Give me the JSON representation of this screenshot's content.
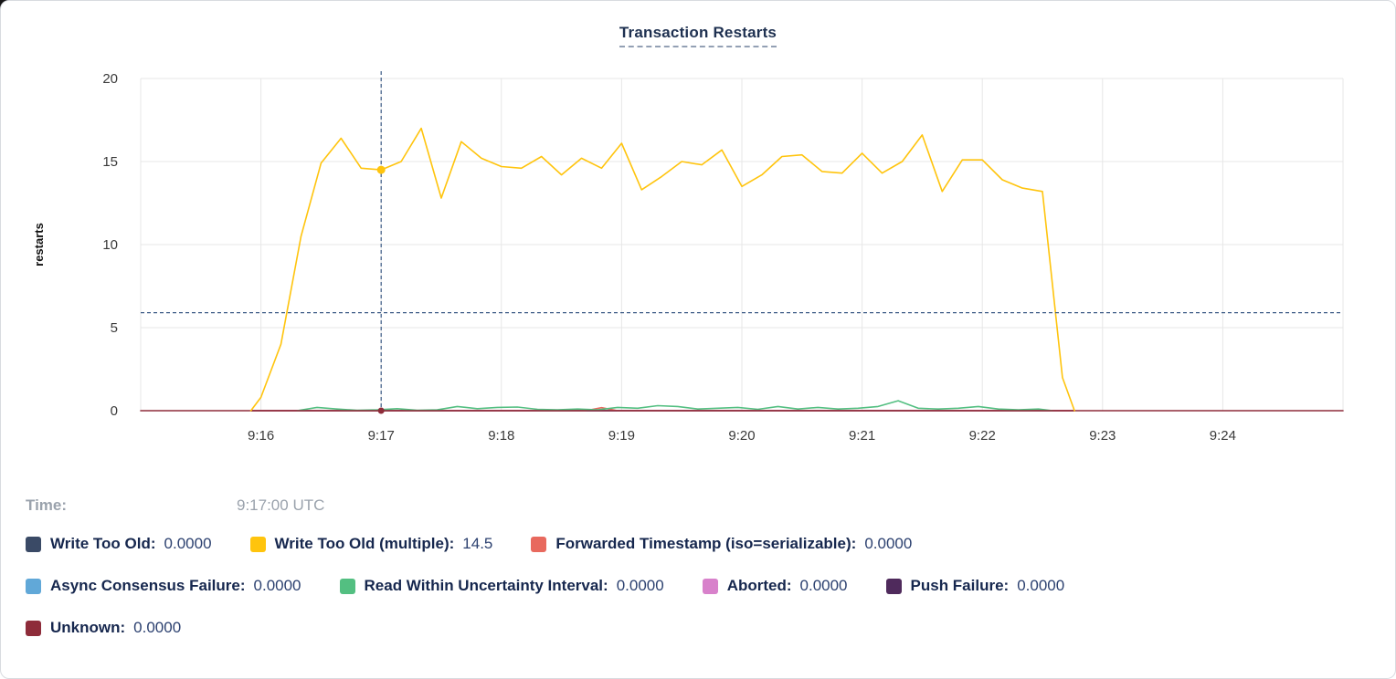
{
  "title": "Transaction Restarts",
  "time_row": {
    "label": "Time:",
    "value": "9:17:00 UTC"
  },
  "legend": {
    "rows": [
      [
        {
          "label": "Write Too Old:",
          "value": "0.0000",
          "color": "#3a4a66"
        },
        {
          "label": "Write Too Old (multiple):",
          "value": "14.5",
          "color": "#ffc40d"
        },
        {
          "label": "Forwarded Timestamp (iso=serializable):",
          "value": "0.0000",
          "color": "#e8695e"
        }
      ],
      [
        {
          "label": "Async Consensus Failure:",
          "value": "0.0000",
          "color": "#61a8d8"
        },
        {
          "label": "Read Within Uncertainty Interval:",
          "value": "0.0000",
          "color": "#53bf81"
        },
        {
          "label": "Aborted:",
          "value": "0.0000",
          "color": "#d881cb"
        },
        {
          "label": "Push Failure:",
          "value": "0.0000",
          "color": "#4f2a5c"
        }
      ],
      [
        {
          "label": "Unknown:",
          "value": "0.0000",
          "color": "#8e2c3a"
        }
      ]
    ]
  },
  "chart_data": {
    "type": "line",
    "title": "Transaction Restarts",
    "ylabel": "restarts",
    "ylim": [
      0,
      20
    ],
    "y_ticks": [
      0,
      5,
      10,
      15,
      20
    ],
    "x_base_time": "9:15:00",
    "xlim_seconds": [
      0,
      600
    ],
    "x_gridlines_seconds": [
      0,
      60,
      120,
      180,
      240,
      300,
      360,
      420,
      480,
      540,
      600
    ],
    "x_ticks": [
      {
        "t": 60,
        "label": "9:16"
      },
      {
        "t": 120,
        "label": "9:17"
      },
      {
        "t": 180,
        "label": "9:18"
      },
      {
        "t": 240,
        "label": "9:19"
      },
      {
        "t": 300,
        "label": "9:20"
      },
      {
        "t": 360,
        "label": "9:21"
      },
      {
        "t": 420,
        "label": "9:22"
      },
      {
        "t": 480,
        "label": "9:23"
      },
      {
        "t": 540,
        "label": "9:24"
      }
    ],
    "grid": true,
    "series": [
      {
        "name": "Write Too Old",
        "color": "#3a4a66",
        "points": [
          [
            55,
            0
          ],
          [
            466,
            0
          ]
        ]
      },
      {
        "name": "Async Consensus Failure",
        "color": "#61a8d8",
        "points": [
          [
            55,
            0
          ],
          [
            466,
            0
          ]
        ]
      },
      {
        "name": "Aborted",
        "color": "#d881cb",
        "points": [
          [
            55,
            0
          ],
          [
            466,
            0
          ]
        ]
      },
      {
        "name": "Push Failure",
        "color": "#4f2a5c",
        "points": [
          [
            55,
            0
          ],
          [
            466,
            0
          ]
        ]
      },
      {
        "name": "Forwarded Timestamp (iso=serializable)",
        "color": "#e8695e",
        "points": [
          [
            55,
            0
          ],
          [
            222,
            0
          ],
          [
            230,
            0.18
          ],
          [
            238,
            0
          ],
          [
            466,
            0
          ]
        ]
      },
      {
        "name": "Read Within Uncertainty Interval",
        "color": "#53bf81",
        "points": [
          [
            78,
            0
          ],
          [
            88,
            0.2
          ],
          [
            98,
            0.1
          ],
          [
            108,
            0.02
          ],
          [
            118,
            0.05
          ],
          [
            128,
            0.12
          ],
          [
            138,
            0.02
          ],
          [
            148,
            0.05
          ],
          [
            158,
            0.25
          ],
          [
            168,
            0.12
          ],
          [
            178,
            0.2
          ],
          [
            188,
            0.22
          ],
          [
            198,
            0.08
          ],
          [
            208,
            0.05
          ],
          [
            218,
            0.1
          ],
          [
            228,
            0.05
          ],
          [
            238,
            0.2
          ],
          [
            248,
            0.15
          ],
          [
            258,
            0.3
          ],
          [
            268,
            0.25
          ],
          [
            278,
            0.1
          ],
          [
            288,
            0.15
          ],
          [
            298,
            0.2
          ],
          [
            308,
            0.08
          ],
          [
            318,
            0.25
          ],
          [
            328,
            0.1
          ],
          [
            338,
            0.2
          ],
          [
            348,
            0.1
          ],
          [
            358,
            0.15
          ],
          [
            368,
            0.25
          ],
          [
            378,
            0.6
          ],
          [
            388,
            0.15
          ],
          [
            398,
            0.1
          ],
          [
            408,
            0.15
          ],
          [
            418,
            0.25
          ],
          [
            428,
            0.1
          ],
          [
            438,
            0.05
          ],
          [
            448,
            0.1
          ],
          [
            455,
            0
          ]
        ]
      },
      {
        "name": "Unknown",
        "color": "#8e2c3a",
        "points": [
          [
            0,
            0
          ],
          [
            600,
            0
          ]
        ]
      },
      {
        "name": "Write Too Old (multiple)",
        "color": "#ffc40d",
        "points": [
          [
            55,
            0
          ],
          [
            60,
            0.8
          ],
          [
            70,
            4.0
          ],
          [
            80,
            10.5
          ],
          [
            90,
            14.9
          ],
          [
            100,
            16.4
          ],
          [
            110,
            14.6
          ],
          [
            120,
            14.5
          ],
          [
            130,
            15.0
          ],
          [
            140,
            17.0
          ],
          [
            150,
            12.8
          ],
          [
            160,
            16.2
          ],
          [
            170,
            15.2
          ],
          [
            180,
            14.7
          ],
          [
            190,
            14.6
          ],
          [
            200,
            15.3
          ],
          [
            210,
            14.2
          ],
          [
            220,
            15.2
          ],
          [
            230,
            14.6
          ],
          [
            240,
            16.1
          ],
          [
            250,
            13.3
          ],
          [
            260,
            14.1
          ],
          [
            270,
            15.0
          ],
          [
            280,
            14.8
          ],
          [
            290,
            15.7
          ],
          [
            300,
            13.5
          ],
          [
            310,
            14.2
          ],
          [
            320,
            15.3
          ],
          [
            330,
            15.4
          ],
          [
            340,
            14.4
          ],
          [
            350,
            14.3
          ],
          [
            360,
            15.5
          ],
          [
            370,
            14.3
          ],
          [
            380,
            15.0
          ],
          [
            390,
            16.6
          ],
          [
            400,
            13.2
          ],
          [
            410,
            15.1
          ],
          [
            420,
            15.1
          ],
          [
            430,
            13.9
          ],
          [
            440,
            13.4
          ],
          [
            450,
            13.2
          ],
          [
            460,
            2.0
          ],
          [
            466,
            0
          ]
        ]
      }
    ],
    "crosshair": {
      "t": 120,
      "time_label": "9:17:00 UTC",
      "hline_value": 5.9,
      "dots": [
        {
          "series": "Write Too Old (multiple)",
          "value": 14.5,
          "color": "#ffc40d"
        },
        {
          "series": "Unknown",
          "value": 0,
          "color": "#8e2c3a"
        }
      ]
    },
    "legend_position": "bottom"
  }
}
